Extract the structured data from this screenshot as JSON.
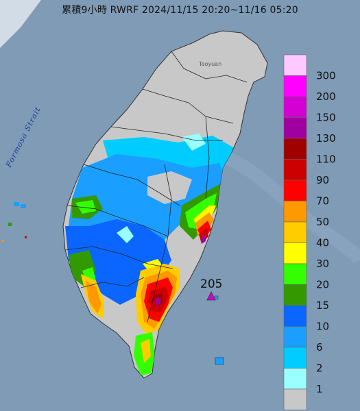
{
  "title": "累積9小時 RWRF 2024/11/15 20:20~11/16 05:20",
  "strait_label": "Formosa Strait",
  "place_label": "Taoyuan",
  "max_value_label": "205",
  "legend": {
    "labels": [
      "300",
      "200",
      "150",
      "130",
      "110",
      "90",
      "70",
      "50",
      "40",
      "30",
      "20",
      "15",
      "10",
      "6",
      "2",
      "1"
    ],
    "colors": [
      "#ffc8ff",
      "#ff00ff",
      "#d400d4",
      "#a000a0",
      "#a00000",
      "#cc0000",
      "#ff0000",
      "#ff9900",
      "#ffcc00",
      "#ffff00",
      "#33ff00",
      "#339900",
      "#0a66ff",
      "#1a9eff",
      "#00ccff",
      "#99ffff",
      "#c8c8c8"
    ]
  },
  "colors": {
    "sea": "#7f9bb6",
    "land_dry": "#c8c8c8",
    "max_marker": "#d400d4"
  }
}
